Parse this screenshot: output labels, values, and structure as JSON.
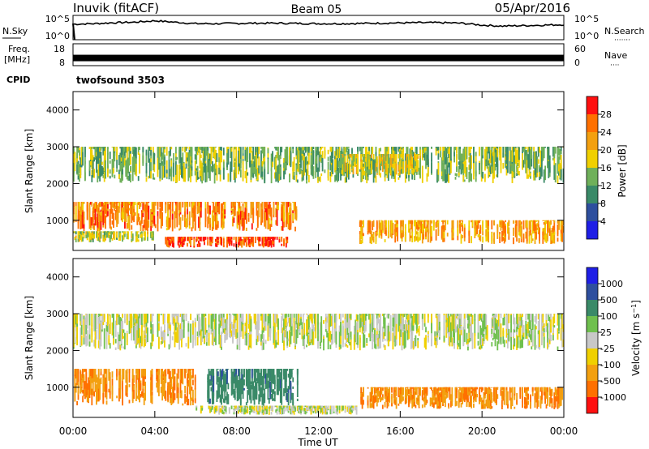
{
  "header": {
    "station": "Inuvik (fitACF)",
    "beam": "Beam 05",
    "date": "05/Apr/2016"
  },
  "side_labels": {
    "nsky": "N.Sky",
    "nsearch": "N.Search",
    "nsearch_dots": "·······",
    "freq_top": "Freq.",
    "freq_unit": "[MHz]",
    "nave": "Nave",
    "nave_dots": "····",
    "cpid": "CPID",
    "cpid_value": "twofsound 3503"
  },
  "noise_ticks": {
    "left_top": "10^5",
    "left_bottom": "10^0",
    "right_top": "10^5",
    "right_bottom": "10^0"
  },
  "freq_ticks": {
    "left_top": "18",
    "left_bottom": "8",
    "right_top": "60",
    "right_bottom": "0"
  },
  "colors": {
    "power": [
      "#1f1fe6",
      "#2e4f9e",
      "#3a8a68",
      "#6fb05a",
      "#f0d000",
      "#f3a010",
      "#ff7000",
      "#ff1010"
    ],
    "velocity": [
      "#1f1fe6",
      "#2e4f9e",
      "#3a8a68",
      "#6fc04e",
      "#c8c8c8",
      "#f0d000",
      "#f3a010",
      "#ff7000",
      "#ff1010"
    ]
  },
  "chart_data": [
    {
      "type": "line",
      "name": "noise",
      "ylabel": "N.Sky",
      "ylabel_right": "N.Search",
      "x": [
        0,
        1,
        2,
        3,
        4,
        5,
        6,
        7,
        8,
        9,
        10,
        11,
        12,
        13,
        14,
        15,
        16,
        17,
        18,
        19,
        20,
        21,
        22,
        23,
        24
      ],
      "y_log10": [
        3.2,
        3.3,
        3.5,
        3.6,
        3.9,
        3.6,
        3.3,
        3.3,
        3.35,
        3.4,
        3.4,
        3.35,
        3.3,
        3.3,
        3.35,
        3.4,
        3.45,
        3.5,
        3.5,
        3.4,
        3.0,
        2.8,
        2.9,
        3.0,
        3.1
      ]
    },
    {
      "type": "line",
      "name": "frequency",
      "ylabel": "Freq. [MHz]",
      "ylabel_right": "Nave",
      "x": [
        0,
        24
      ],
      "y": [
        11.5,
        11.5
      ],
      "ylim": [
        8,
        18
      ]
    },
    {
      "type": "heatmap",
      "name": "power",
      "xlabel": "",
      "ylabel": "Slant Range [km]",
      "colorbar_label": "Power [dB]",
      "xlim": [
        0,
        24
      ],
      "ylim": [
        180,
        4500
      ],
      "y_ticks": [
        "1000",
        "2000",
        "3000",
        "4000"
      ],
      "colorbar_ticks": [
        "4",
        "8",
        "12",
        "16",
        "20",
        "24",
        "28"
      ],
      "bands": [
        {
          "t0": 0.0,
          "t1": 11.0,
          "r0": 700,
          "r1": 1500,
          "value": 24
        },
        {
          "t0": 0.0,
          "t1": 4.0,
          "r0": 400,
          "r1": 700,
          "value": 16
        },
        {
          "t0": 4.5,
          "t1": 10.5,
          "r0": 250,
          "r1": 550,
          "value": 28
        },
        {
          "t0": 14.0,
          "t1": 24.0,
          "r0": 350,
          "r1": 1000,
          "value": 22
        },
        {
          "t0": 0.0,
          "t1": 24.0,
          "r0": 2000,
          "r1": 3000,
          "value": 14
        },
        {
          "t0": 13.0,
          "t1": 17.0,
          "r0": 2200,
          "r1": 2800,
          "value": 18
        }
      ]
    },
    {
      "type": "heatmap",
      "name": "velocity",
      "xlabel": "Time UT",
      "ylabel": "Slant Range [km]",
      "colorbar_label": "Velocity [m s^-1]",
      "xlim": [
        0,
        24
      ],
      "ylim": [
        180,
        4500
      ],
      "x_ticks": [
        "00:00",
        "04:00",
        "08:00",
        "12:00",
        "16:00",
        "20:00",
        "00:00"
      ],
      "y_ticks": [
        "1000",
        "2000",
        "3000",
        "4000"
      ],
      "colorbar_ticks": [
        "1000",
        "500",
        "100",
        "25",
        "-25",
        "-100",
        "-500",
        "-1000"
      ],
      "bands": [
        {
          "t0": 0.0,
          "t1": 6.0,
          "r0": 500,
          "r1": 1500,
          "value": -300
        },
        {
          "t0": 6.5,
          "t1": 11.0,
          "r0": 500,
          "r1": 1500,
          "value": 250
        },
        {
          "t0": 0.0,
          "t1": 24.0,
          "r0": 2000,
          "r1": 3000,
          "value": 0
        },
        {
          "t0": 14.0,
          "t1": 24.0,
          "r0": 400,
          "r1": 1000,
          "value": -300
        },
        {
          "t0": 6.0,
          "t1": 14.0,
          "r0": 250,
          "r1": 500,
          "value": 0
        }
      ]
    }
  ]
}
